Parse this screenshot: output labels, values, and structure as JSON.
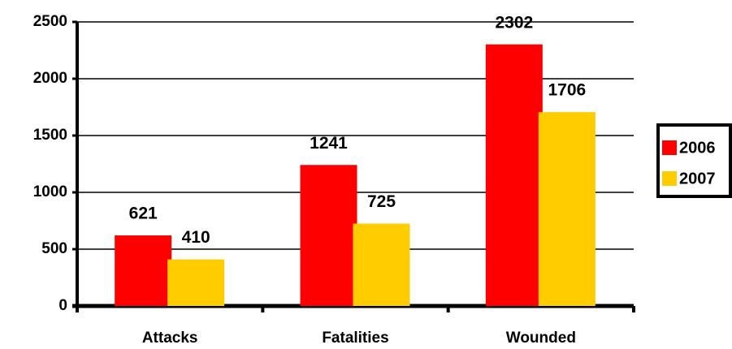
{
  "chart_data": {
    "type": "bar",
    "categories": [
      "Attacks",
      "Fatalities",
      "Wounded"
    ],
    "series": [
      {
        "name": "2006",
        "color": "#ff0000",
        "values": [
          621,
          1241,
          2302
        ]
      },
      {
        "name": "2007",
        "color": "#ffcc00",
        "values": [
          410,
          725,
          1706
        ]
      }
    ],
    "ylim": [
      0,
      2500
    ],
    "yticks": [
      0,
      500,
      1000,
      1500,
      2000,
      2500
    ],
    "grid": true,
    "legend": "right"
  }
}
